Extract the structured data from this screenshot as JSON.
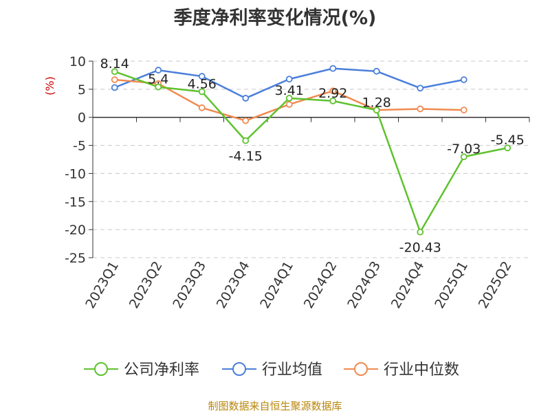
{
  "source": "制图数据来自恒生聚源数据库",
  "chart_data": {
    "type": "line",
    "title": "季度净利率变化情况(%)",
    "ylabel": "(%)",
    "ylim": [
      -25,
      10
    ],
    "yticks": [
      10,
      5,
      0,
      -5,
      -10,
      -15,
      -20,
      -25
    ],
    "grid": true,
    "legend_position": "bottom",
    "categories": [
      "2023Q1",
      "2023Q2",
      "2023Q3",
      "2023Q4",
      "2024Q1",
      "2024Q2",
      "2024Q3",
      "2024Q4",
      "2025Q1",
      "2025Q2"
    ],
    "series": [
      {
        "name": "公司净利率",
        "color": "#5ec22e",
        "values": [
          8.14,
          5.4,
          4.56,
          -4.15,
          3.41,
          2.92,
          1.28,
          -20.43,
          -7.03,
          -5.45
        ],
        "labels": [
          "8.14",
          "5.4",
          "4.56",
          "-4.15",
          "3.41",
          "2.92",
          "1.28",
          "-20.43",
          "-7.03",
          "-5.45"
        ]
      },
      {
        "name": "行业均值",
        "color": "#4a7fdb",
        "values": [
          5.3,
          8.4,
          7.3,
          3.4,
          6.8,
          8.7,
          8.2,
          5.2,
          6.7,
          null
        ]
      },
      {
        "name": "行业中位数",
        "color": "#f08a50",
        "values": [
          6.7,
          6.0,
          1.7,
          -0.6,
          2.3,
          4.7,
          1.3,
          1.5,
          1.3,
          null
        ]
      }
    ]
  }
}
